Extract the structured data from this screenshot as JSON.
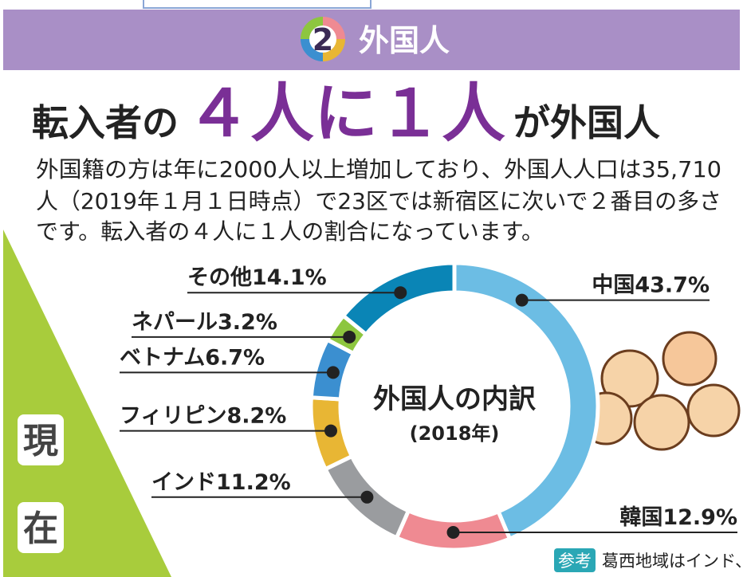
{
  "header": {
    "number": "2",
    "title": "外国人"
  },
  "headline": {
    "pre": "転入者の",
    "emphasis": "４人に１人",
    "post": "が外国人"
  },
  "body": [
    "外国籍の方は年に2000人以上増加しており、外国人人口は35,710",
    "人（2019年１月１日時点）で23区では新宿区に次いで２番目の多さ",
    "です。転入者の４人に１人の割合になっています。"
  ],
  "side_label": [
    "現",
    "在"
  ],
  "note": {
    "tag": "参考",
    "text": "葛西地域はインド、小岩地域は中国の割合が高い。"
  },
  "chart_data": {
    "type": "donut",
    "title": "外国人の内訳",
    "subtitle": "(2018年)",
    "categories": [
      "中国",
      "韓国",
      "インド",
      "フィリピン",
      "ベトナム",
      "ネパール",
      "その他"
    ],
    "values": [
      43.7,
      12.9,
      11.2,
      8.2,
      6.7,
      3.2,
      14.1
    ],
    "value_labels": [
      "43.7%",
      "12.9%",
      "11.2%",
      "8.2%",
      "6.7%",
      "3.2%",
      "14.1%"
    ],
    "colors": [
      "#6cbde4",
      "#ef8a92",
      "#9a9c9f",
      "#e8b634",
      "#3b8fd0",
      "#8dc63f",
      "#0a85b6"
    ]
  }
}
